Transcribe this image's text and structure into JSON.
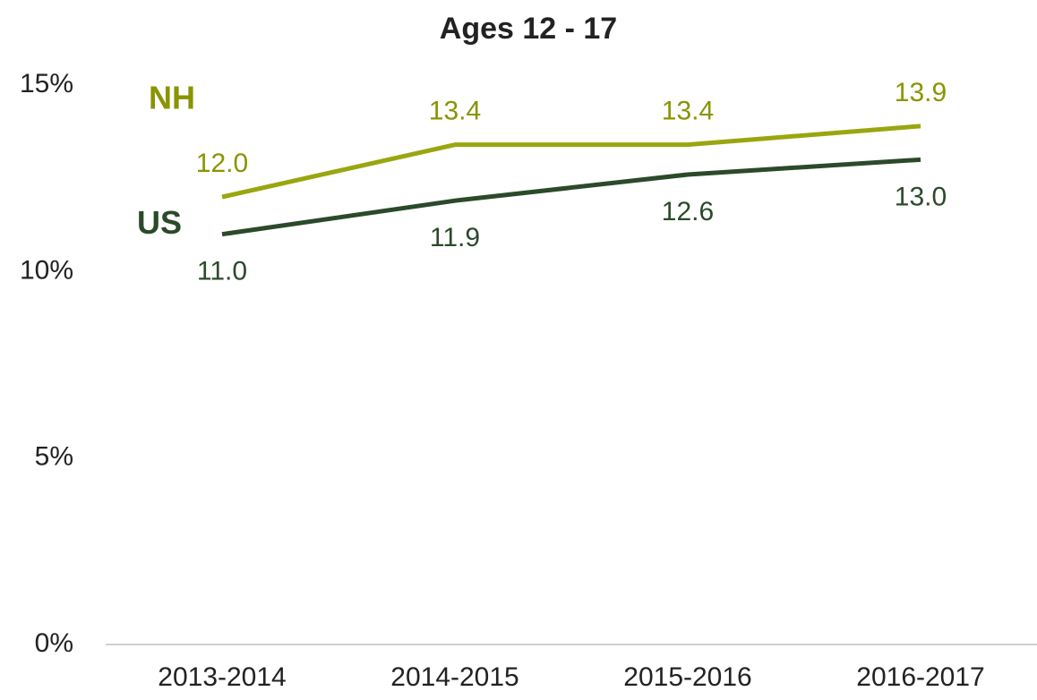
{
  "chart_data": {
    "type": "line",
    "title": "Ages 12 - 17",
    "categories": [
      "2013-2014",
      "2014-2015",
      "2015-2016",
      "2016-2017"
    ],
    "series": [
      {
        "name": "NH",
        "color": "#9aa60f",
        "values": [
          12.0,
          13.4,
          13.4,
          13.9
        ],
        "value_labels": [
          "12.0",
          "13.4",
          "13.4",
          "13.9"
        ]
      },
      {
        "name": "US",
        "color": "#2b4a2a",
        "values": [
          11.0,
          11.9,
          12.6,
          13.0
        ],
        "value_labels": [
          "11.0",
          "11.9",
          "12.6",
          "13.0"
        ]
      }
    ],
    "ylim": [
      0,
      15
    ],
    "yticks": [
      {
        "value": 0,
        "label": "0%"
      },
      {
        "value": 5,
        "label": "5%"
      },
      {
        "value": 10,
        "label": "10%"
      },
      {
        "value": 15,
        "label": "15%"
      }
    ],
    "grid": false
  }
}
